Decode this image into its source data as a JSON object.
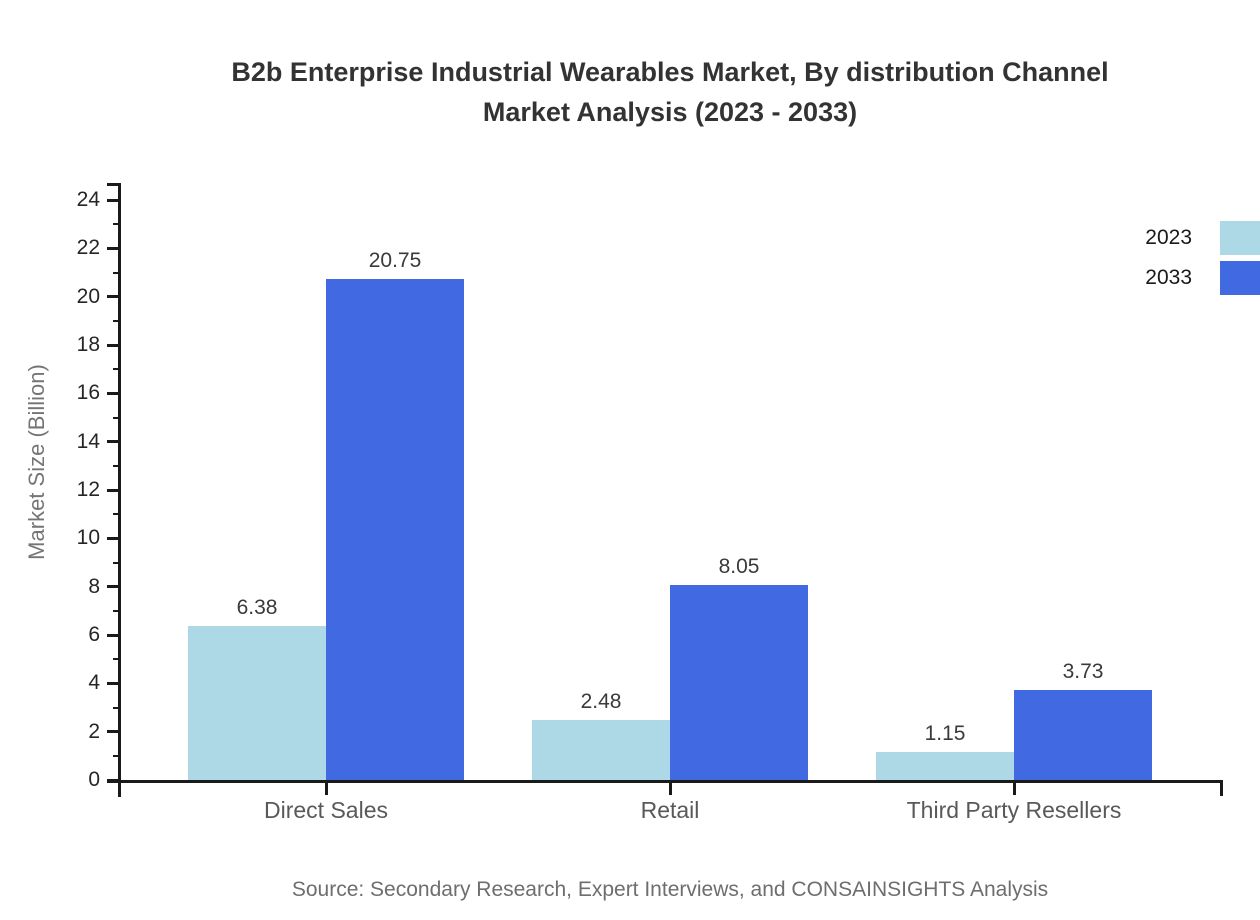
{
  "figure": {
    "title_line1": "B2b Enterprise Industrial Wearables Market, By distribution Channel",
    "title_line2": "Market Analysis (2023 - 2033)",
    "source": "Source: Secondary Research, Expert Interviews, and CONSAINSIGHTS Analysis"
  },
  "chart_data": {
    "type": "bar",
    "title": "B2b Enterprise Industrial Wearables Market, By distribution Channel Market Analysis (2023 - 2033)",
    "categories": [
      "Direct Sales",
      "Retail",
      "Third Party Resellers"
    ],
    "series": [
      {
        "name": "2023",
        "color": "#ADD8E6",
        "values": [
          6.38,
          2.48,
          1.15
        ]
      },
      {
        "name": "2033",
        "color": "#4169E1",
        "values": [
          20.75,
          8.05,
          3.73
        ]
      }
    ],
    "xlabel": "",
    "ylabel": "Market Size (Billion)",
    "ylim": [
      0,
      24
    ],
    "yticks": [
      0,
      2,
      4,
      6,
      8,
      10,
      12,
      14,
      16,
      18,
      20,
      22,
      24
    ],
    "minor_yticks": [
      1,
      3,
      5,
      7,
      9,
      11,
      13,
      15,
      17,
      19,
      21,
      23
    ],
    "grid": false,
    "legend_position": "top-right",
    "value_labels": true
  },
  "colors": {
    "series_2023": "#ADD8E6",
    "series_2033": "#4169E1",
    "axis": "#1a1a1a",
    "tick_label": "#262626",
    "category_label": "#595959",
    "value_label": "#3a3a3a",
    "title": "#333333",
    "axis_title": "#757575",
    "source": "#6e6e6e",
    "background": "#ffffff"
  }
}
